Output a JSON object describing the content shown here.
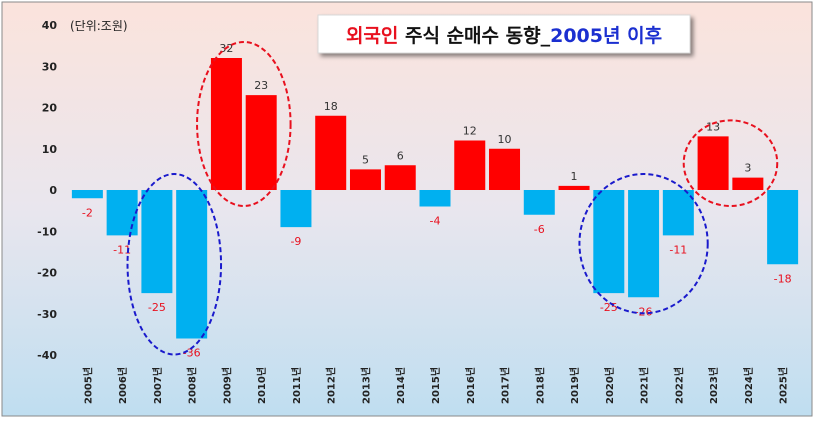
{
  "chart_data": {
    "type": "bar",
    "title_parts": [
      {
        "text": "외국인",
        "color": "#e8101e"
      },
      {
        "text": " 주식 순매수 동향_",
        "color": "#111111"
      },
      {
        "text": "2005년 이후",
        "color": "#1b2fd0"
      }
    ],
    "unit_label": "(단위:조원)",
    "categories": [
      "2005년",
      "2006년",
      "2007년",
      "2008년",
      "2009년",
      "2010년",
      "2011년",
      "2012년",
      "2013년",
      "2014년",
      "2015년",
      "2016년",
      "2017년",
      "2018년",
      "2019년",
      "2020년",
      "2021년",
      "2022년",
      "2023년",
      "2024년",
      "2025년"
    ],
    "values": [
      -2,
      -11,
      -25,
      -36,
      32,
      23,
      -9,
      18,
      5,
      6,
      -4,
      12,
      10,
      -6,
      1,
      -25,
      -26,
      -11,
      13,
      3,
      -18
    ],
    "ylim": [
      -40,
      40
    ],
    "yticks": [
      40,
      30,
      20,
      10,
      0,
      -10,
      -20,
      -30,
      -40
    ],
    "colors": {
      "positive": "#ff0000",
      "negative": "#00b0f0",
      "negative_label": "#e8101e",
      "positive_label": "#333333"
    },
    "highlight_groups": [
      {
        "from": 4,
        "to": 5,
        "color": "#e8101e"
      },
      {
        "from": 2,
        "to": 3,
        "color": "#1a1acc"
      },
      {
        "from": 15,
        "to": 17,
        "color": "#1a1acc"
      },
      {
        "from": 18,
        "to": 19,
        "color": "#e8101e"
      }
    ]
  }
}
